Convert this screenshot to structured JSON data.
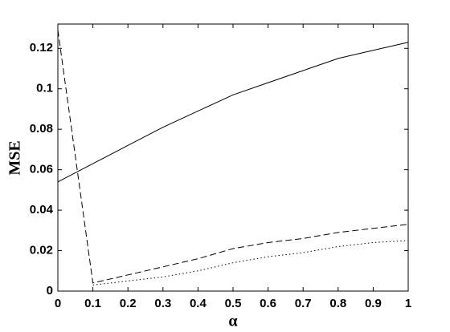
{
  "chart_data": {
    "type": "line",
    "xlabel": "α",
    "ylabel": "MSE",
    "x": [
      0,
      0.1,
      0.2,
      0.3,
      0.4,
      0.5,
      0.6,
      0.7,
      0.8,
      0.9,
      1
    ],
    "series": [
      {
        "color": "#000000",
        "dash": "solid",
        "values": [
          0.054,
          0.063,
          0.072,
          0.081,
          0.089,
          0.097,
          0.103,
          0.109,
          0.115,
          0.119,
          0.123
        ]
      },
      {
        "color": "#000000",
        "dash": "dashed",
        "values": [
          0.129,
          0.004,
          0.008,
          0.012,
          0.016,
          0.021,
          0.024,
          0.026,
          0.029,
          0.031,
          0.033
        ]
      },
      {
        "color": "#000000",
        "dash": "dotted",
        "values": [
          null,
          0.003,
          0.005,
          0.007,
          0.01,
          0.014,
          0.017,
          0.019,
          0.022,
          0.024,
          0.025
        ]
      }
    ],
    "xlim": [
      0,
      1
    ],
    "xticks": [
      0,
      0.1,
      0.2,
      0.3,
      0.4,
      0.5,
      0.6,
      0.7,
      0.8,
      0.9,
      1
    ],
    "ylim": [
      0,
      0.132
    ],
    "yticks": [
      0,
      0.02,
      0.04,
      0.06,
      0.08,
      0.1,
      0.12
    ],
    "grid": false
  }
}
